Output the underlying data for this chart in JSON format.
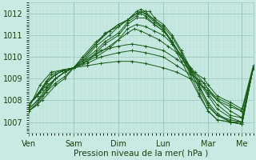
{
  "title": "",
  "xlabel": "Pression niveau de la mer( hPa )",
  "ylabel": "",
  "background_color": "#c8eae2",
  "plot_bg_color": "#c8eae2",
  "grid_major_color": "#9dc8be",
  "grid_minor_color": "#b8dcd5",
  "line_color": "#1a5c1a",
  "ylim": [
    1006.5,
    1012.5
  ],
  "yticks": [
    1007,
    1008,
    1009,
    1010,
    1011,
    1012
  ],
  "x_day_labels": [
    "Ven",
    "Sam",
    "Dim",
    "Lun",
    "Mar",
    "Me"
  ],
  "x_day_positions": [
    0,
    1,
    2,
    3,
    4,
    4.75
  ],
  "xlim": [
    0,
    5.0
  ],
  "series": [
    {
      "points": [
        [
          0,
          1007.8
        ],
        [
          0.3,
          1008.5
        ],
        [
          0.6,
          1009.0
        ],
        [
          0.8,
          1009.3
        ],
        [
          1.0,
          1009.5
        ],
        [
          1.3,
          1009.6
        ],
        [
          1.6,
          1009.7
        ],
        [
          2.0,
          1009.8
        ],
        [
          2.3,
          1009.8
        ],
        [
          2.6,
          1009.7
        ],
        [
          3.0,
          1009.5
        ],
        [
          3.3,
          1009.3
        ],
        [
          3.6,
          1009.0
        ],
        [
          3.9,
          1008.6
        ],
        [
          4.0,
          1008.4
        ],
        [
          4.2,
          1008.0
        ],
        [
          4.5,
          1007.7
        ],
        [
          4.75,
          1007.5
        ],
        [
          5.0,
          1009.5
        ]
      ]
    },
    {
      "points": [
        [
          0,
          1007.6
        ],
        [
          0.3,
          1008.2
        ],
        [
          0.6,
          1008.8
        ],
        [
          0.8,
          1009.1
        ],
        [
          1.0,
          1009.5
        ],
        [
          1.3,
          1009.7
        ],
        [
          1.6,
          1010.0
        ],
        [
          2.0,
          1010.2
        ],
        [
          2.3,
          1010.3
        ],
        [
          2.6,
          1010.2
        ],
        [
          3.0,
          1010.0
        ],
        [
          3.3,
          1009.6
        ],
        [
          3.6,
          1009.2
        ],
        [
          3.9,
          1008.8
        ],
        [
          4.0,
          1008.5
        ],
        [
          4.2,
          1008.1
        ],
        [
          4.5,
          1007.8
        ],
        [
          4.75,
          1007.5
        ],
        [
          5.0,
          1009.5
        ]
      ]
    },
    {
      "points": [
        [
          0,
          1007.5
        ],
        [
          0.3,
          1008.0
        ],
        [
          0.6,
          1008.7
        ],
        [
          0.8,
          1009.0
        ],
        [
          1.0,
          1009.5
        ],
        [
          1.3,
          1009.8
        ],
        [
          1.6,
          1010.3
        ],
        [
          2.0,
          1010.5
        ],
        [
          2.3,
          1010.6
        ],
        [
          2.6,
          1010.5
        ],
        [
          3.0,
          1010.3
        ],
        [
          3.3,
          1009.9
        ],
        [
          3.6,
          1009.4
        ],
        [
          3.9,
          1009.0
        ],
        [
          4.0,
          1008.7
        ],
        [
          4.2,
          1008.2
        ],
        [
          4.5,
          1007.9
        ],
        [
          4.75,
          1007.6
        ],
        [
          5.0,
          1009.6
        ]
      ]
    },
    {
      "points": [
        [
          0,
          1007.8
        ],
        [
          0.25,
          1008.4
        ],
        [
          0.5,
          1009.2
        ],
        [
          0.75,
          1009.4
        ],
        [
          1.0,
          1009.5
        ],
        [
          1.2,
          1009.8
        ],
        [
          1.5,
          1010.1
        ],
        [
          1.8,
          1010.5
        ],
        [
          2.0,
          1010.8
        ],
        [
          2.2,
          1011.1
        ],
        [
          2.35,
          1011.3
        ],
        [
          2.5,
          1011.2
        ],
        [
          2.7,
          1011.0
        ],
        [
          2.9,
          1010.8
        ],
        [
          3.1,
          1010.5
        ],
        [
          3.3,
          1010.2
        ],
        [
          3.5,
          1009.8
        ],
        [
          3.7,
          1009.3
        ],
        [
          3.9,
          1008.8
        ],
        [
          4.0,
          1008.5
        ],
        [
          4.2,
          1008.0
        ],
        [
          4.5,
          1007.5
        ],
        [
          4.75,
          1007.2
        ],
        [
          5.0,
          1009.5
        ]
      ]
    },
    {
      "points": [
        [
          0,
          1007.6
        ],
        [
          0.25,
          1008.7
        ],
        [
          0.5,
          1009.3
        ],
        [
          0.75,
          1009.4
        ],
        [
          1.0,
          1009.5
        ],
        [
          1.2,
          1009.7
        ],
        [
          1.5,
          1010.0
        ],
        [
          1.8,
          1010.4
        ],
        [
          2.0,
          1010.8
        ],
        [
          2.2,
          1011.3
        ],
        [
          2.4,
          1011.5
        ],
        [
          2.6,
          1011.4
        ],
        [
          2.8,
          1011.2
        ],
        [
          3.0,
          1011.0
        ],
        [
          3.2,
          1010.6
        ],
        [
          3.4,
          1010.1
        ],
        [
          3.6,
          1009.5
        ],
        [
          3.8,
          1008.9
        ],
        [
          4.0,
          1008.3
        ],
        [
          4.2,
          1007.8
        ],
        [
          4.5,
          1007.3
        ],
        [
          4.75,
          1007.2
        ],
        [
          5.0,
          1009.5
        ]
      ]
    },
    {
      "points": [
        [
          0,
          1007.5
        ],
        [
          0.2,
          1007.8
        ],
        [
          0.4,
          1008.4
        ],
        [
          0.6,
          1009.0
        ],
        [
          0.8,
          1009.3
        ],
        [
          1.0,
          1009.5
        ],
        [
          1.2,
          1009.7
        ],
        [
          1.5,
          1010.2
        ],
        [
          1.7,
          1010.6
        ],
        [
          2.0,
          1011.0
        ],
        [
          2.2,
          1011.5
        ],
        [
          2.4,
          1011.8
        ],
        [
          2.6,
          1011.8
        ],
        [
          2.8,
          1011.5
        ],
        [
          3.0,
          1011.2
        ],
        [
          3.2,
          1010.7
        ],
        [
          3.4,
          1010.0
        ],
        [
          3.6,
          1009.4
        ],
        [
          3.8,
          1008.8
        ],
        [
          4.0,
          1008.2
        ],
        [
          4.2,
          1007.6
        ],
        [
          4.5,
          1007.2
        ],
        [
          4.75,
          1007.0
        ],
        [
          5.0,
          1009.5
        ]
      ]
    },
    {
      "points": [
        [
          0,
          1007.8
        ],
        [
          0.2,
          1008.2
        ],
        [
          0.4,
          1008.8
        ],
        [
          0.6,
          1009.2
        ],
        [
          0.8,
          1009.4
        ],
        [
          1.0,
          1009.5
        ],
        [
          1.2,
          1009.8
        ],
        [
          1.5,
          1010.3
        ],
        [
          1.7,
          1010.7
        ],
        [
          2.0,
          1011.1
        ],
        [
          2.2,
          1011.6
        ],
        [
          2.4,
          1011.9
        ],
        [
          2.5,
          1012.0
        ],
        [
          2.6,
          1011.9
        ],
        [
          2.8,
          1011.5
        ],
        [
          3.0,
          1011.2
        ],
        [
          3.2,
          1010.7
        ],
        [
          3.4,
          1010.0
        ],
        [
          3.6,
          1009.3
        ],
        [
          3.8,
          1008.6
        ],
        [
          4.0,
          1007.9
        ],
        [
          4.2,
          1007.4
        ],
        [
          4.5,
          1007.0
        ],
        [
          4.75,
          1006.9
        ],
        [
          5.0,
          1009.5
        ]
      ]
    },
    {
      "points": [
        [
          0,
          1007.5
        ],
        [
          0.2,
          1007.9
        ],
        [
          0.4,
          1008.5
        ],
        [
          0.6,
          1009.0
        ],
        [
          0.8,
          1009.3
        ],
        [
          1.0,
          1009.5
        ],
        [
          1.2,
          1009.8
        ],
        [
          1.5,
          1010.5
        ],
        [
          1.8,
          1011.0
        ],
        [
          2.0,
          1011.4
        ],
        [
          2.2,
          1011.7
        ],
        [
          2.4,
          1012.0
        ],
        [
          2.6,
          1012.1
        ],
        [
          2.7,
          1012.1
        ],
        [
          2.8,
          1011.8
        ],
        [
          3.0,
          1011.5
        ],
        [
          3.2,
          1011.0
        ],
        [
          3.4,
          1010.3
        ],
        [
          3.6,
          1009.5
        ],
        [
          3.8,
          1008.7
        ],
        [
          4.0,
          1007.8
        ],
        [
          4.2,
          1007.3
        ],
        [
          4.5,
          1007.0
        ],
        [
          4.75,
          1006.9
        ],
        [
          5.0,
          1009.5
        ]
      ]
    },
    {
      "points": [
        [
          0,
          1007.8
        ],
        [
          0.2,
          1008.3
        ],
        [
          0.4,
          1008.9
        ],
        [
          0.6,
          1009.2
        ],
        [
          0.8,
          1009.4
        ],
        [
          1.0,
          1009.5
        ],
        [
          1.2,
          1009.9
        ],
        [
          1.5,
          1010.6
        ],
        [
          1.7,
          1011.1
        ],
        [
          2.0,
          1011.4
        ],
        [
          2.2,
          1011.7
        ],
        [
          2.4,
          1012.0
        ],
        [
          2.5,
          1012.1
        ],
        [
          2.6,
          1012.0
        ],
        [
          2.8,
          1011.7
        ],
        [
          3.0,
          1011.4
        ],
        [
          3.2,
          1010.9
        ],
        [
          3.4,
          1010.2
        ],
        [
          3.6,
          1009.4
        ],
        [
          3.8,
          1008.5
        ],
        [
          4.0,
          1007.7
        ],
        [
          4.2,
          1007.3
        ],
        [
          4.5,
          1007.1
        ],
        [
          4.75,
          1007.0
        ],
        [
          5.0,
          1009.5
        ]
      ]
    },
    {
      "points": [
        [
          0,
          1007.6
        ],
        [
          0.2,
          1008.0
        ],
        [
          0.4,
          1008.6
        ],
        [
          0.6,
          1009.0
        ],
        [
          0.8,
          1009.3
        ],
        [
          1.0,
          1009.5
        ],
        [
          1.2,
          1009.9
        ],
        [
          1.5,
          1010.6
        ],
        [
          1.8,
          1011.2
        ],
        [
          2.0,
          1011.5
        ],
        [
          2.2,
          1011.7
        ],
        [
          2.4,
          1012.0
        ],
        [
          2.5,
          1012.1
        ],
        [
          2.6,
          1012.0
        ],
        [
          2.8,
          1011.6
        ],
        [
          3.0,
          1011.3
        ],
        [
          3.2,
          1010.7
        ],
        [
          3.4,
          1010.0
        ],
        [
          3.6,
          1009.2
        ],
        [
          3.8,
          1008.3
        ],
        [
          4.0,
          1007.5
        ],
        [
          4.2,
          1007.1
        ],
        [
          4.5,
          1007.0
        ],
        [
          4.75,
          1007.0
        ],
        [
          5.0,
          1009.5
        ]
      ]
    },
    {
      "points": [
        [
          0,
          1007.8
        ],
        [
          0.2,
          1008.2
        ],
        [
          0.4,
          1008.8
        ],
        [
          0.6,
          1009.2
        ],
        [
          0.8,
          1009.4
        ],
        [
          1.0,
          1009.5
        ],
        [
          1.2,
          1010.0
        ],
        [
          1.5,
          1010.7
        ],
        [
          1.8,
          1011.2
        ],
        [
          2.0,
          1011.5
        ],
        [
          2.2,
          1011.7
        ],
        [
          2.4,
          1012.1
        ],
        [
          2.5,
          1012.2
        ],
        [
          2.6,
          1012.1
        ],
        [
          2.8,
          1011.7
        ],
        [
          3.0,
          1011.3
        ],
        [
          3.2,
          1010.6
        ],
        [
          3.4,
          1009.8
        ],
        [
          3.6,
          1009.0
        ],
        [
          3.8,
          1008.2
        ],
        [
          4.0,
          1007.5
        ],
        [
          4.2,
          1007.1
        ],
        [
          4.5,
          1007.0
        ],
        [
          4.75,
          1006.9
        ],
        [
          5.0,
          1009.5
        ]
      ]
    }
  ]
}
